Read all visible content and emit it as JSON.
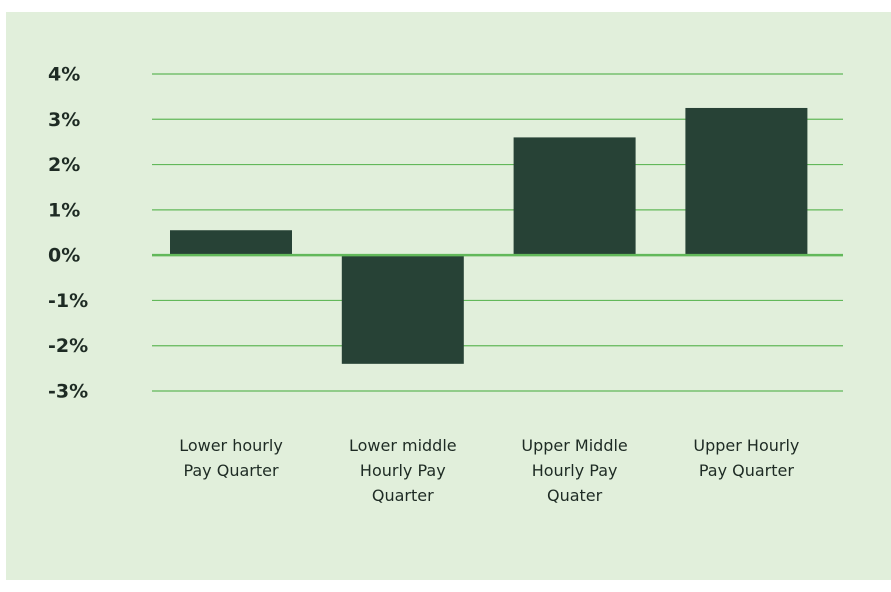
{
  "chart_data": {
    "type": "bar",
    "categories": [
      "Lower hourly Pay Quarter",
      "Lower middle Hourly Pay Quarter",
      "Upper Middle Hourly Pay Quater",
      "Upper Hourly Pay Quarter"
    ],
    "values": [
      0.55,
      -2.4,
      2.6,
      3.25
    ],
    "color": "#274236",
    "ylim": [
      -3,
      4
    ],
    "yticks": [
      {
        "value": 4,
        "label": "4%"
      },
      {
        "value": 3,
        "label": "3%"
      },
      {
        "value": 2,
        "label": "2%"
      },
      {
        "value": 1,
        "label": "1%"
      },
      {
        "value": 0,
        "label": "0%"
      },
      {
        "value": -1,
        "label": "-1%"
      },
      {
        "value": -2,
        "label": "-2%"
      },
      {
        "value": -3,
        "label": "-3%"
      }
    ],
    "grid": true,
    "grid_color": "#62b85a",
    "background": "#e1efdb"
  }
}
